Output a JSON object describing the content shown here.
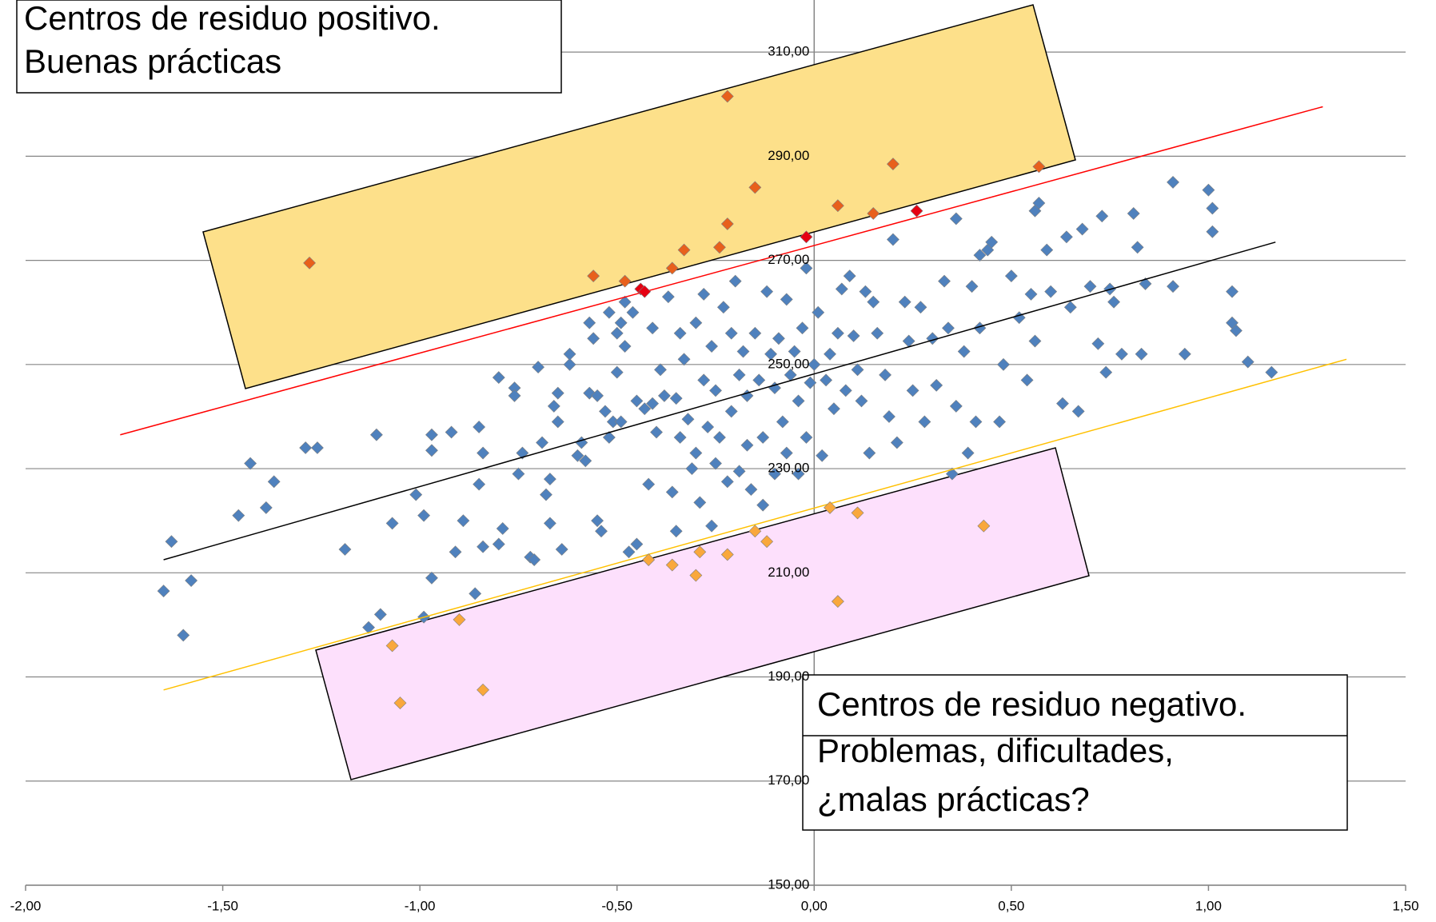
{
  "chart_data": {
    "type": "scatter",
    "annotations": [
      {
        "lines": [
          "Centros de residuo positivo.",
          "Buenas prácticas"
        ]
      },
      {
        "lines": [
          "Centros de residuo negativo.",
          "Problemas, dificultades,",
          "¿malas prácticas?"
        ]
      }
    ],
    "xlim": [
      -2,
      1.5
    ],
    "xticks": [
      {
        "value": -2,
        "label": "-2,00"
      },
      {
        "value": -1.5,
        "label": "-1,50"
      },
      {
        "value": -1,
        "label": "-1,00"
      },
      {
        "value": -0.5,
        "label": "-0,50"
      },
      {
        "value": 0,
        "label": "0,00"
      },
      {
        "value": 0.5,
        "label": "0,50"
      },
      {
        "value": 1,
        "label": "1,00"
      },
      {
        "value": 1.5,
        "label": "1,50"
      }
    ],
    "ylim": [
      150,
      320
    ],
    "yticks": [
      {
        "value": 150,
        "label": "150,00"
      },
      {
        "value": 170,
        "label": "170,00"
      },
      {
        "value": 190,
        "label": "190,00"
      },
      {
        "value": 210,
        "label": "210,00"
      },
      {
        "value": 230,
        "label": "230,00"
      },
      {
        "value": 250,
        "label": "250,00"
      },
      {
        "value": 270,
        "label": "270,00"
      },
      {
        "value": 290,
        "label": "290,00"
      },
      {
        "value": 310,
        "label": "310,00"
      }
    ],
    "grid": true,
    "series": [
      {
        "type": "scatter",
        "color": "#4f81bd",
        "x": [
          -1.65,
          -1.63,
          -1.6,
          -1.58,
          -1.46,
          -1.43,
          -1.39,
          -1.37,
          -1.29,
          -1.26,
          -1.19,
          -1.13,
          -1.11,
          -1.1,
          -1.07,
          -1.01,
          -0.99,
          -0.99,
          -0.97,
          -0.97,
          -0.97,
          -0.92,
          -0.91,
          -0.89,
          -0.86,
          -0.85,
          -0.85,
          -0.84,
          -0.84,
          -0.8,
          -0.8,
          -0.79,
          -0.76,
          -0.76,
          -0.75,
          -0.74,
          -0.72,
          -0.71,
          -0.7,
          -0.69,
          -0.68,
          -0.67,
          -0.67,
          -0.66,
          -0.65,
          -0.65,
          -0.64,
          -0.62,
          -0.62,
          -0.6,
          -0.59,
          -0.58,
          -0.57,
          -0.57,
          -0.56,
          -0.55,
          -0.55,
          -0.54,
          -0.53,
          -0.52,
          -0.52,
          -0.51,
          -0.5,
          -0.5,
          -0.49,
          -0.49,
          -0.48,
          -0.48,
          -0.47,
          -0.46,
          -0.45,
          -0.45,
          -0.43,
          -0.42,
          -0.41,
          -0.41,
          -0.4,
          -0.39,
          -0.38,
          -0.37,
          -0.36,
          -0.35,
          -0.35,
          -0.34,
          -0.34,
          -0.33,
          -0.32,
          -0.31,
          -0.3,
          -0.3,
          -0.29,
          -0.28,
          -0.28,
          -0.27,
          -0.26,
          -0.26,
          -0.25,
          -0.25,
          -0.24,
          -0.23,
          -0.22,
          -0.21,
          -0.21,
          -0.2,
          -0.19,
          -0.19,
          -0.18,
          -0.17,
          -0.17,
          -0.16,
          -0.15,
          -0.14,
          -0.13,
          -0.13,
          -0.12,
          -0.11,
          -0.1,
          -0.1,
          -0.09,
          -0.08,
          -0.07,
          -0.07,
          -0.06,
          -0.05,
          -0.04,
          -0.04,
          -0.03,
          -0.02,
          -0.02,
          -0.01,
          0,
          0.01,
          0.02,
          0.03,
          0.04,
          0.05,
          0.06,
          0.07,
          0.08,
          0.09,
          0.1,
          0.11,
          0.12,
          0.13,
          0.14,
          0.15,
          0.16,
          0.18,
          0.19,
          0.2,
          0.21,
          0.23,
          0.24,
          0.25,
          0.27,
          0.28,
          0.3,
          0.31,
          0.33,
          0.34,
          0.35,
          0.36,
          0.36,
          0.38,
          0.39,
          0.4,
          0.41,
          0.42,
          0.42,
          0.44,
          0.45,
          0.47,
          0.48,
          0.5,
          0.52,
          0.54,
          0.55,
          0.56,
          0.56,
          0.57,
          0.59,
          0.6,
          0.63,
          0.64,
          0.65,
          0.67,
          0.68,
          0.7,
          0.72,
          0.73,
          0.74,
          0.75,
          0.76,
          0.78,
          0.81,
          0.82,
          0.83,
          0.84,
          0.91,
          0.91,
          0.94,
          1.0,
          1.01,
          1.01,
          1.06,
          1.06,
          1.07,
          1.1,
          1.16
        ],
        "values": [
          206.5,
          216,
          198,
          208.5,
          221,
          231,
          222.5,
          227.5,
          234,
          234,
          214.5,
          199.5,
          236.5,
          202,
          219.5,
          225,
          221,
          201.5,
          236.5,
          233.5,
          209,
          237,
          214,
          220,
          206,
          227,
          238,
          215,
          233,
          247.5,
          215.5,
          218.5,
          245.5,
          244,
          229,
          233,
          213,
          212.5,
          249.5,
          235,
          225,
          219.5,
          228,
          242,
          239,
          244.5,
          214.5,
          250,
          252,
          232.5,
          235,
          231.5,
          244.5,
          258,
          255,
          244,
          220,
          218,
          241,
          260,
          236,
          239,
          248.5,
          256,
          258,
          239,
          262,
          253.5,
          214,
          260,
          243,
          215.5,
          241.5,
          227,
          242.5,
          257,
          237,
          249,
          244,
          263,
          225.5,
          218,
          243.5,
          256,
          236,
          251,
          239.5,
          230,
          258,
          233,
          223.5,
          247,
          263.5,
          238,
          253.5,
          219,
          231,
          245,
          236,
          261,
          227.5,
          256,
          241,
          266,
          248,
          229.5,
          252.5,
          234.5,
          244,
          226,
          256,
          247,
          236,
          223,
          264,
          252,
          229,
          245.5,
          255,
          239,
          262.5,
          233,
          248,
          252.5,
          229,
          243,
          257,
          268.5,
          236,
          246.5,
          250,
          260,
          232.5,
          247,
          252,
          241.5,
          256,
          264.5,
          245,
          267,
          255.5,
          249,
          243,
          264,
          233,
          262,
          256,
          248,
          240,
          274,
          235,
          262,
          254.5,
          245,
          261,
          239,
          255,
          246,
          266,
          257,
          229,
          278,
          242,
          252.5,
          233,
          265,
          239,
          257,
          271,
          272,
          273.5,
          239,
          250,
          267,
          259,
          247,
          263.5,
          254.5,
          279.5,
          281,
          272,
          264,
          242.5,
          274.5,
          261,
          241,
          276,
          265,
          254,
          278.5,
          248.5,
          264.5,
          262,
          252,
          279,
          272.5,
          252,
          265.5,
          285,
          265,
          252,
          283.5,
          275.5,
          280,
          264,
          258,
          256.5,
          250.5,
          248.5
        ]
      },
      {
        "type": "line",
        "color": "#000000",
        "x": [
          -1.65,
          1.17
        ],
        "values": [
          212.5,
          273.5
        ]
      },
      {
        "type": "line",
        "color": "#ff0000",
        "x": [
          -1.76,
          1.29
        ],
        "values": [
          236.5,
          299.5
        ]
      },
      {
        "type": "line",
        "color": "#ffc000",
        "x": [
          -1.65,
          1.35
        ],
        "values": [
          187.5,
          251
        ]
      },
      {
        "type": "scatter",
        "color": "#e8601c",
        "x": [
          -1.28,
          -0.56,
          -0.48,
          -0.36,
          -0.33,
          -0.24,
          -0.22,
          -0.22,
          -0.15,
          0.06,
          0.15,
          0.2,
          0.57
        ],
        "values": [
          269.5,
          267,
          266,
          268.5,
          272,
          272.5,
          277,
          301.5,
          284,
          280.5,
          279,
          288.5,
          288
        ]
      },
      {
        "type": "scatter",
        "color": "#e60012",
        "x": [
          -0.44,
          -0.43,
          -0.02,
          0.26
        ],
        "values": [
          264.5,
          264,
          274.5,
          279.5
        ]
      },
      {
        "type": "scatter",
        "color": "#f9a83c",
        "x": [
          -1.07,
          -1.05,
          -0.9,
          -0.84,
          -0.42,
          -0.36,
          -0.3,
          -0.29,
          -0.22,
          -0.15,
          -0.12,
          0.06,
          0.04,
          0.11,
          0.43
        ],
        "values": [
          196,
          185,
          201,
          187.5,
          212.5,
          211.5,
          209.5,
          214,
          213.5,
          218,
          216,
          204.5,
          222.5,
          221.5,
          219
        ]
      }
    ]
  }
}
